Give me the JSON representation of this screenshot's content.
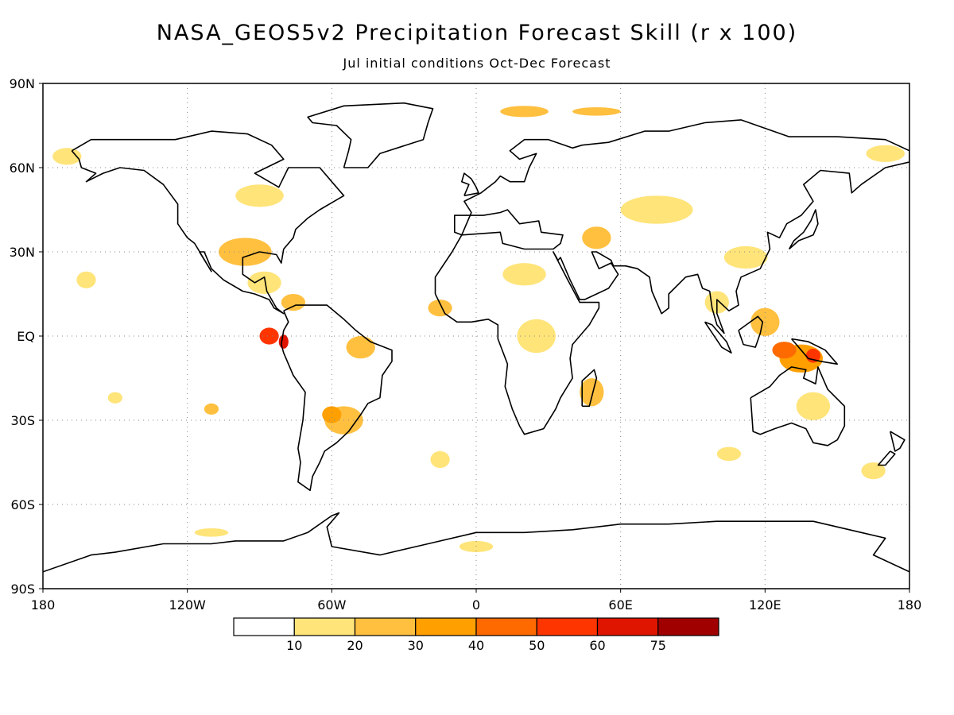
{
  "title": "NASA_GEOS5v2 Precipitation Forecast Skill (r x 100)",
  "subtitle": "Jul initial conditions   Oct-Dec Forecast",
  "map": {
    "lat_labels": [
      "90N",
      "60N",
      "30N",
      "EQ",
      "30S",
      "60S",
      "90S"
    ],
    "lon_labels": [
      "180",
      "120W",
      "60W",
      "0",
      "60E",
      "120E",
      "180"
    ],
    "extent": {
      "lon_min": -180,
      "lon_max": 180,
      "lat_min": -90,
      "lat_max": 90
    },
    "gridlines": "dotted"
  },
  "colorbar": {
    "colors": [
      "#ffffff",
      "#ffe47a",
      "#ffc040",
      "#ffa000",
      "#ff6a00",
      "#ff3500",
      "#e01500",
      "#a00000"
    ],
    "labels": [
      "10",
      "20",
      "30",
      "40",
      "50",
      "60",
      "75"
    ]
  },
  "skill_regions": [
    {
      "lon": -96,
      "lat": 30,
      "w": 22,
      "h": 10,
      "level": 2
    },
    {
      "lon": -88,
      "lat": 19,
      "w": 14,
      "h": 8,
      "level": 1
    },
    {
      "lon": -76,
      "lat": 12,
      "w": 10,
      "h": 6,
      "level": 2
    },
    {
      "lon": -86,
      "lat": 0,
      "w": 8,
      "h": 6,
      "level": 5
    },
    {
      "lon": -80,
      "lat": -2,
      "w": 4,
      "h": 5,
      "level": 6
    },
    {
      "lon": -48,
      "lat": -4,
      "w": 12,
      "h": 8,
      "level": 2
    },
    {
      "lon": -55,
      "lat": -30,
      "w": 16,
      "h": 10,
      "level": 2
    },
    {
      "lon": -60,
      "lat": -28,
      "w": 8,
      "h": 6,
      "level": 3
    },
    {
      "lon": -162,
      "lat": 20,
      "w": 8,
      "h": 6,
      "level": 1
    },
    {
      "lon": -150,
      "lat": -22,
      "w": 6,
      "h": 4,
      "level": 1
    },
    {
      "lon": -110,
      "lat": -26,
      "w": 6,
      "h": 4,
      "level": 2
    },
    {
      "lon": -15,
      "lat": 10,
      "w": 10,
      "h": 6,
      "level": 2
    },
    {
      "lon": 20,
      "lat": 22,
      "w": 18,
      "h": 8,
      "level": 1
    },
    {
      "lon": 25,
      "lat": 0,
      "w": 16,
      "h": 12,
      "level": 1
    },
    {
      "lon": 48,
      "lat": -20,
      "w": 10,
      "h": 10,
      "level": 2
    },
    {
      "lon": 50,
      "lat": 35,
      "w": 12,
      "h": 8,
      "level": 2
    },
    {
      "lon": 75,
      "lat": 45,
      "w": 30,
      "h": 10,
      "level": 1
    },
    {
      "lon": 112,
      "lat": 28,
      "w": 18,
      "h": 8,
      "level": 1
    },
    {
      "lon": 135,
      "lat": -8,
      "w": 18,
      "h": 10,
      "level": 3
    },
    {
      "lon": 128,
      "lat": -5,
      "w": 10,
      "h": 6,
      "level": 4
    },
    {
      "lon": 140,
      "lat": -7,
      "w": 6,
      "h": 5,
      "level": 5
    },
    {
      "lon": 120,
      "lat": 5,
      "w": 12,
      "h": 10,
      "level": 2
    },
    {
      "lon": 140,
      "lat": -25,
      "w": 14,
      "h": 10,
      "level": 1
    },
    {
      "lon": 100,
      "lat": 12,
      "w": 10,
      "h": 8,
      "level": 1
    },
    {
      "lon": 20,
      "lat": 80,
      "w": 20,
      "h": 4,
      "level": 2
    },
    {
      "lon": 50,
      "lat": 80,
      "w": 20,
      "h": 3,
      "level": 2
    },
    {
      "lon": -170,
      "lat": 64,
      "w": 12,
      "h": 6,
      "level": 1
    },
    {
      "lon": 0,
      "lat": -75,
      "w": 14,
      "h": 4,
      "level": 1
    },
    {
      "lon": -110,
      "lat": -70,
      "w": 14,
      "h": 3,
      "level": 1
    },
    {
      "lon": 170,
      "lat": 65,
      "w": 16,
      "h": 6,
      "level": 1
    },
    {
      "lon": -15,
      "lat": -44,
      "w": 8,
      "h": 6,
      "level": 1
    },
    {
      "lon": 105,
      "lat": -42,
      "w": 10,
      "h": 5,
      "level": 1
    },
    {
      "lon": 165,
      "lat": -48,
      "w": 10,
      "h": 6,
      "level": 1
    },
    {
      "lon": -90,
      "lat": 50,
      "w": 20,
      "h": 8,
      "level": 1
    }
  ]
}
